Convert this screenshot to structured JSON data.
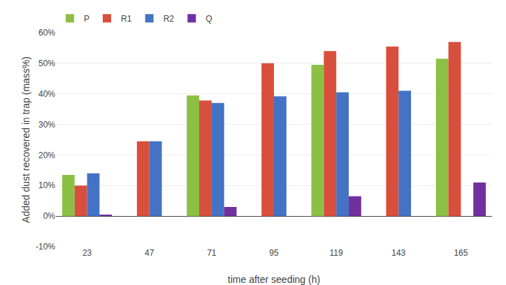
{
  "chart_data": {
    "type": "bar",
    "categories": [
      "23",
      "47",
      "71",
      "95",
      "119",
      "143",
      "165"
    ],
    "series": [
      {
        "name": "P",
        "color": "#8CC044",
        "values": [
          0.135,
          null,
          0.395,
          null,
          0.495,
          null,
          0.515
        ]
      },
      {
        "name": "R1",
        "color": "#D94F3D",
        "values": [
          0.1,
          0.245,
          0.378,
          0.5,
          0.54,
          0.555,
          0.57
        ]
      },
      {
        "name": "R2",
        "color": "#4472C4",
        "values": [
          0.14,
          0.245,
          0.37,
          0.392,
          0.405,
          0.41,
          null
        ]
      },
      {
        "name": "Q",
        "color": "#7030A0",
        "values": [
          0.005,
          null,
          0.03,
          null,
          0.065,
          null,
          0.11
        ]
      }
    ],
    "xlabel": "time after seeding (h)",
    "ylabel": "Added dust recovered in trap (mass%)",
    "ylim": [
      -0.1,
      0.6
    ],
    "yticks": [
      {
        "value": -0.1,
        "label": "-10%"
      },
      {
        "value": 0.0,
        "label": "0%"
      },
      {
        "value": 0.1,
        "label": "10%"
      },
      {
        "value": 0.2,
        "label": "20%"
      },
      {
        "value": 0.3,
        "label": "30%"
      },
      {
        "value": 0.4,
        "label": "40%"
      },
      {
        "value": 0.5,
        "label": "50%"
      },
      {
        "value": 0.6,
        "label": "60%"
      }
    ],
    "grid": true,
    "legend": "upper left"
  }
}
